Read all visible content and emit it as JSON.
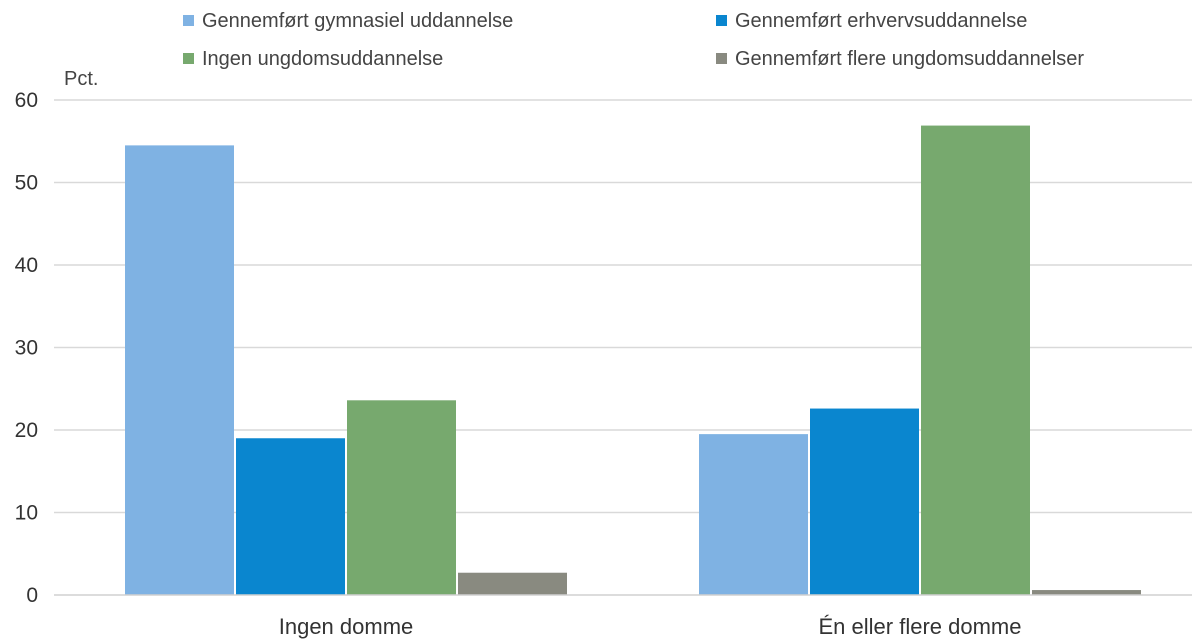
{
  "chart_data": {
    "type": "bar",
    "ylabel": "Pct.",
    "ylim": [
      0,
      60
    ],
    "yticks": [
      0,
      10,
      20,
      30,
      40,
      50,
      60
    ],
    "grid": true,
    "legend_position": "top",
    "categories": [
      "Ingen domme",
      "Én eller flere domme"
    ],
    "series": [
      {
        "name": "Gennemført gymnasiel uddannelse",
        "color": "#7fb2e3",
        "values": [
          54.5,
          19.5
        ]
      },
      {
        "name": "Gennemført erhvervsuddannelse",
        "color": "#0a86cf",
        "values": [
          19.0,
          22.6
        ]
      },
      {
        "name": "Ingen ungdomsuddannelse",
        "color": "#77a96e",
        "values": [
          23.6,
          56.9
        ]
      },
      {
        "name": "Gennemført flere ungdomsuddannelser",
        "color": "#898a80",
        "values": [
          2.7,
          0.6
        ]
      }
    ]
  }
}
